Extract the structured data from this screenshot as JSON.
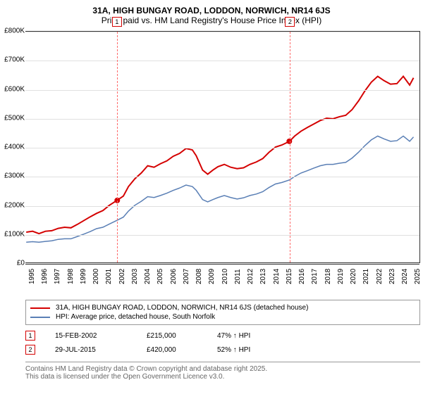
{
  "title_line1": "31A, HIGH BUNGAY ROAD, LODDON, NORWICH, NR14 6JS",
  "title_line2": "Price paid vs. HM Land Registry's House Price Index (HPI)",
  "chart": {
    "type": "line",
    "plot_bg": "#ffffff",
    "grid_color": "#e0e0e0",
    "axis_color": "#333333",
    "label_fontsize": 10,
    "x_years": [
      1995,
      1996,
      1997,
      1998,
      1999,
      2000,
      2001,
      2002,
      2003,
      2004,
      2005,
      2006,
      2007,
      2008,
      2009,
      2010,
      2011,
      2012,
      2013,
      2014,
      2015,
      2016,
      2017,
      2018,
      2019,
      2020,
      2021,
      2022,
      2023,
      2024,
      2025
    ],
    "xlim": [
      1995,
      2025.7
    ],
    "y_ticks": [
      0,
      100,
      200,
      300,
      400,
      500,
      600,
      700,
      800
    ],
    "y_tick_labels": [
      "£0",
      "£100K",
      "£200K",
      "£300K",
      "£400K",
      "£500K",
      "£600K",
      "£700K",
      "£800K"
    ],
    "ylim": [
      0,
      800
    ],
    "series": [
      {
        "id": "price_paid",
        "label": "31A, HIGH BUNGAY ROAD, LODDON, NORWICH, NR14 6JS (detached house)",
        "color": "#d40000",
        "line_width": 2,
        "points": [
          [
            1995,
            105
          ],
          [
            1995.5,
            108
          ],
          [
            1996,
            100
          ],
          [
            1996.5,
            108
          ],
          [
            1997,
            110
          ],
          [
            1997.5,
            118
          ],
          [
            1998,
            122
          ],
          [
            1998.5,
            120
          ],
          [
            1999,
            132
          ],
          [
            1999.5,
            145
          ],
          [
            2000,
            158
          ],
          [
            2000.5,
            170
          ],
          [
            2001,
            180
          ],
          [
            2001.5,
            198
          ],
          [
            2002.1,
            215
          ],
          [
            2002.6,
            230
          ],
          [
            2003,
            263
          ],
          [
            2003.5,
            290
          ],
          [
            2004,
            310
          ],
          [
            2004.5,
            335
          ],
          [
            2005,
            330
          ],
          [
            2005.5,
            342
          ],
          [
            2006,
            352
          ],
          [
            2006.5,
            368
          ],
          [
            2007,
            378
          ],
          [
            2007.5,
            395
          ],
          [
            2008,
            390
          ],
          [
            2008.3,
            370
          ],
          [
            2008.8,
            320
          ],
          [
            2009.2,
            306
          ],
          [
            2009.6,
            320
          ],
          [
            2010,
            332
          ],
          [
            2010.5,
            340
          ],
          [
            2011,
            330
          ],
          [
            2011.5,
            325
          ],
          [
            2012,
            328
          ],
          [
            2012.5,
            340
          ],
          [
            2013,
            348
          ],
          [
            2013.5,
            360
          ],
          [
            2014,
            382
          ],
          [
            2014.5,
            400
          ],
          [
            2015,
            407
          ],
          [
            2015.6,
            420
          ],
          [
            2016,
            438
          ],
          [
            2016.5,
            455
          ],
          [
            2017,
            468
          ],
          [
            2017.5,
            480
          ],
          [
            2018,
            492
          ],
          [
            2018.5,
            500
          ],
          [
            2019,
            498
          ],
          [
            2019.5,
            505
          ],
          [
            2020,
            510
          ],
          [
            2020.5,
            530
          ],
          [
            2021,
            560
          ],
          [
            2021.5,
            595
          ],
          [
            2022,
            625
          ],
          [
            2022.5,
            645
          ],
          [
            2023,
            630
          ],
          [
            2023.5,
            618
          ],
          [
            2024,
            620
          ],
          [
            2024.5,
            645
          ],
          [
            2025,
            615
          ],
          [
            2025.3,
            640
          ]
        ]
      },
      {
        "id": "hpi",
        "label": "HPI: Average price, detached house, South Norfolk",
        "color": "#5a7fb5",
        "line_width": 1.5,
        "points": [
          [
            1995,
            70
          ],
          [
            1995.5,
            72
          ],
          [
            1996,
            70
          ],
          [
            1996.5,
            73
          ],
          [
            1997,
            75
          ],
          [
            1997.5,
            80
          ],
          [
            1998,
            82
          ],
          [
            1998.5,
            82
          ],
          [
            1999,
            90
          ],
          [
            1999.5,
            98
          ],
          [
            2000,
            107
          ],
          [
            2000.5,
            117
          ],
          [
            2001,
            122
          ],
          [
            2001.5,
            133
          ],
          [
            2002.1,
            146
          ],
          [
            2002.6,
            157
          ],
          [
            2003,
            178
          ],
          [
            2003.5,
            198
          ],
          [
            2004,
            212
          ],
          [
            2004.5,
            228
          ],
          [
            2005,
            225
          ],
          [
            2005.5,
            232
          ],
          [
            2006,
            240
          ],
          [
            2006.5,
            250
          ],
          [
            2007,
            258
          ],
          [
            2007.5,
            268
          ],
          [
            2008,
            263
          ],
          [
            2008.3,
            250
          ],
          [
            2008.8,
            218
          ],
          [
            2009.2,
            210
          ],
          [
            2009.6,
            218
          ],
          [
            2010,
            225
          ],
          [
            2010.5,
            232
          ],
          [
            2011,
            225
          ],
          [
            2011.5,
            220
          ],
          [
            2012,
            224
          ],
          [
            2012.5,
            232
          ],
          [
            2013,
            237
          ],
          [
            2013.5,
            245
          ],
          [
            2014,
            260
          ],
          [
            2014.5,
            272
          ],
          [
            2015,
            277
          ],
          [
            2015.6,
            286
          ],
          [
            2016,
            298
          ],
          [
            2016.5,
            310
          ],
          [
            2017,
            318
          ],
          [
            2017.5,
            327
          ],
          [
            2018,
            335
          ],
          [
            2018.5,
            340
          ],
          [
            2019,
            340
          ],
          [
            2019.5,
            344
          ],
          [
            2020,
            347
          ],
          [
            2020.5,
            362
          ],
          [
            2021,
            382
          ],
          [
            2021.5,
            405
          ],
          [
            2022,
            425
          ],
          [
            2022.5,
            438
          ],
          [
            2023,
            428
          ],
          [
            2023.5,
            420
          ],
          [
            2024,
            422
          ],
          [
            2024.5,
            438
          ],
          [
            2025,
            420
          ],
          [
            2025.3,
            435
          ]
        ]
      }
    ],
    "markers": [
      {
        "x": 2002.12,
        "y": 215,
        "color": "#d40000",
        "size": 4
      },
      {
        "x": 2015.58,
        "y": 420,
        "color": "#d40000",
        "size": 4
      }
    ],
    "events": [
      {
        "n": "1",
        "x": 2002.12,
        "color": "#ff6a6a",
        "dash": "4,3"
      },
      {
        "n": "2",
        "x": 2015.58,
        "color": "#ff6a6a",
        "dash": "4,3"
      }
    ]
  },
  "legend": {
    "border_color": "#999999"
  },
  "events_table": [
    {
      "n": "1",
      "date": "15-FEB-2002",
      "price": "£215,000",
      "delta": "47% ↑ HPI",
      "badge_color": "#d40000"
    },
    {
      "n": "2",
      "date": "29-JUL-2015",
      "price": "£420,000",
      "delta": "52% ↑ HPI",
      "badge_color": "#d40000"
    }
  ],
  "copyright": {
    "border_color": "#999999",
    "color": "#666666",
    "line1": "Contains HM Land Registry data © Crown copyright and database right 2025.",
    "line2": "This data is licensed under the Open Government Licence v3.0."
  }
}
